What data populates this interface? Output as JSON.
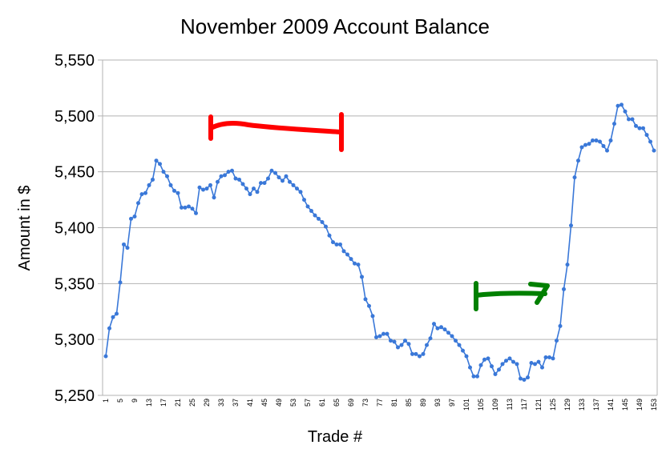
{
  "chart_data": {
    "type": "line",
    "title": "November 2009 Account Balance",
    "xlabel": "Trade #",
    "ylabel": "Amount in $",
    "ylim": [
      5250,
      5550
    ],
    "yticks": [
      5250,
      5300,
      5350,
      5400,
      5450,
      5500,
      5550
    ],
    "ytick_labels": [
      "5,250",
      "5,300",
      "5,350",
      "5,400",
      "5,450",
      "5,500",
      "5,550"
    ],
    "xlim": [
      1,
      153
    ],
    "xticks": [
      1,
      5,
      9,
      13,
      17,
      21,
      25,
      29,
      33,
      37,
      41,
      45,
      49,
      53,
      57,
      61,
      65,
      69,
      73,
      77,
      81,
      85,
      89,
      93,
      97,
      101,
      105,
      109,
      113,
      117,
      121,
      125,
      129,
      133,
      137,
      141,
      145,
      149,
      153
    ],
    "grid": "horizontal",
    "legend": "none",
    "series": [
      {
        "color": "#3a78d8",
        "x": [
          1,
          2,
          3,
          4,
          5,
          6,
          7,
          8,
          9,
          10,
          11,
          12,
          13,
          14,
          15,
          16,
          17,
          18,
          19,
          20,
          21,
          22,
          23,
          24,
          25,
          26,
          27,
          28,
          29,
          30,
          31,
          32,
          33,
          34,
          35,
          36,
          37,
          38,
          39,
          40,
          41,
          42,
          43,
          44,
          45,
          46,
          47,
          48,
          49,
          50,
          51,
          52,
          53,
          54,
          55,
          56,
          57,
          58,
          59,
          60,
          61,
          62,
          63,
          64,
          65,
          66,
          67,
          68,
          69,
          70,
          71,
          72,
          73,
          74,
          75,
          76,
          77,
          78,
          79,
          80,
          81,
          82,
          83,
          84,
          85,
          86,
          87,
          88,
          89,
          90,
          91,
          92,
          93,
          94,
          95,
          96,
          97,
          98,
          99,
          100,
          101,
          102,
          103,
          104,
          105,
          106,
          107,
          108,
          109,
          110,
          111,
          112,
          113,
          114,
          115,
          116,
          117,
          118,
          119,
          120,
          121,
          122,
          123,
          124,
          125,
          126,
          127,
          128,
          129,
          130,
          131,
          132,
          133,
          134,
          135,
          136,
          137,
          138,
          139,
          140,
          141,
          142,
          143,
          144,
          145,
          146,
          147,
          148,
          149,
          150,
          151,
          152,
          153
        ],
        "values": [
          5285,
          5310,
          5320,
          5323,
          5351,
          5385,
          5382,
          5408,
          5410,
          5422,
          5430,
          5431,
          5438,
          5443,
          5460,
          5457,
          5450,
          5446,
          5438,
          5433,
          5431,
          5418,
          5418,
          5419,
          5417,
          5413,
          5436,
          5434,
          5435,
          5438,
          5427,
          5441,
          5446,
          5447,
          5450,
          5451,
          5444,
          5443,
          5439,
          5435,
          5430,
          5435,
          5432,
          5440,
          5440,
          5444,
          5451,
          5449,
          5445,
          5442,
          5446,
          5441,
          5438,
          5435,
          5432,
          5425,
          5419,
          5415,
          5411,
          5408,
          5405,
          5401,
          5393,
          5387,
          5385,
          5385,
          5379,
          5376,
          5372,
          5368,
          5367,
          5356,
          5336,
          5330,
          5321,
          5302,
          5303,
          5305,
          5305,
          5299,
          5298,
          5293,
          5295,
          5299,
          5296,
          5287,
          5287,
          5285,
          5287,
          5295,
          5301,
          5314,
          5310,
          5311,
          5309,
          5306,
          5303,
          5299,
          5295,
          5290,
          5285,
          5275,
          5267,
          5267,
          5277,
          5282,
          5283,
          5276,
          5269,
          5273,
          5278,
          5281,
          5283,
          5280,
          5278,
          5265,
          5264,
          5266,
          5279,
          5278,
          5280,
          5275,
          5284,
          5284,
          5283,
          5299,
          5312,
          5345,
          5367,
          5402,
          5445,
          5460,
          5472,
          5474,
          5475,
          5478,
          5478,
          5477,
          5473,
          5469,
          5478,
          5493,
          5509,
          5510,
          5504,
          5497,
          5497,
          5491,
          5489,
          5489,
          5483,
          5477,
          5469
        ]
      }
    ],
    "annotations": [
      {
        "shape": "bracket-arrow",
        "color": "#ff0000",
        "description": "hand-drawn red bracket"
      },
      {
        "shape": "bracket-arrow",
        "color": "#008000",
        "description": "hand-drawn green arrow"
      }
    ]
  }
}
